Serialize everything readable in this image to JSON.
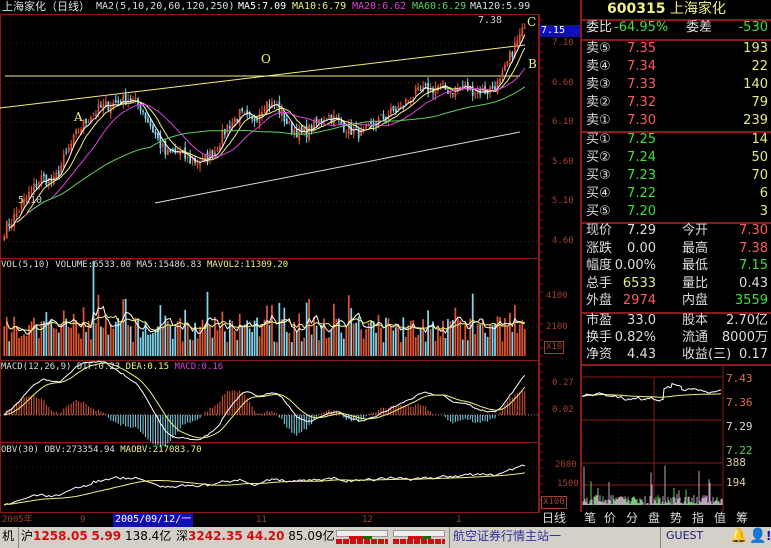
{
  "header": {
    "title": "上海家化（日线）",
    "ma_params": "MA2(5,10,20,60,120,250)",
    "ma5": "MA5:7.09",
    "ma10": "MA10:6.79",
    "ma20": "MA20:6.62",
    "ma60": "MA60:6.29",
    "ma120": "MA120:5.99"
  },
  "annotations": {
    "high": "7.38",
    "a": "A",
    "o": "O",
    "b": "B",
    "c": "C",
    "low": "5.10"
  },
  "price_axis": {
    "current": "7.15",
    "ticks": [
      "7.10",
      "6.60",
      "6.10",
      "5.60",
      "5.10",
      "4.60"
    ]
  },
  "price_series": {
    "sample_every_days": 5,
    "closes": [
      4.75,
      4.95,
      5.2,
      5.4,
      5.35,
      5.7,
      6.0,
      6.2,
      6.3,
      6.35,
      6.4,
      6.3,
      6.0,
      5.7,
      5.72,
      5.62,
      5.6,
      5.75,
      6.05,
      6.2,
      6.1,
      6.35,
      6.3,
      6.05,
      5.95,
      6.05,
      6.2,
      6.1,
      6.0,
      5.95,
      6.1,
      6.2,
      6.3,
      6.45,
      6.5,
      6.55,
      6.5,
      6.55,
      6.5,
      6.5,
      6.6,
      7.0,
      7.29
    ]
  },
  "volume": {
    "title": "VOL(5,10)",
    "volume": "VOLUME:6533.00",
    "ma5": "MA5:15486.83",
    "mavol2": "MAVOL2:11309.20",
    "ticks": [
      "4100",
      "2100"
    ],
    "unit": "X10"
  },
  "macd": {
    "title": "MACD(12,26,9)",
    "dif": "DIF:0.23",
    "dea": "DEA:0.15",
    "macd": "MACD:0.16",
    "ticks": [
      "0.27",
      "0.02"
    ]
  },
  "obv": {
    "title": "OBV(30)",
    "obv": "OBV:273354.94",
    "maobv": "MAOBV:217083.70",
    "ticks": [
      "2600",
      "1500"
    ],
    "unit": "X100"
  },
  "date_axis": {
    "labels": [
      "2005年",
      "9",
      "11",
      "12",
      "1"
    ],
    "cursor": "2005/09/12/一"
  },
  "quote": {
    "code": "600315",
    "name": "上海家化",
    "weibi_label": "委比",
    "weibi": "-64.95%",
    "weicha_label": "委差",
    "weicha": "-530",
    "sell": [
      {
        "label": "卖⑤",
        "price": "7.35",
        "vol": "193"
      },
      {
        "label": "卖④",
        "price": "7.34",
        "vol": "22"
      },
      {
        "label": "卖③",
        "price": "7.33",
        "vol": "140"
      },
      {
        "label": "卖②",
        "price": "7.32",
        "vol": "79"
      },
      {
        "label": "卖①",
        "price": "7.30",
        "vol": "239"
      }
    ],
    "buy": [
      {
        "label": "买①",
        "price": "7.25",
        "vol": "14"
      },
      {
        "label": "买②",
        "price": "7.24",
        "vol": "50"
      },
      {
        "label": "买③",
        "price": "7.23",
        "vol": "70"
      },
      {
        "label": "买④",
        "price": "7.22",
        "vol": "6"
      },
      {
        "label": "买⑤",
        "price": "7.20",
        "vol": "3"
      }
    ],
    "stats": [
      {
        "l1": "现价",
        "v1": "7.29",
        "c1": "wht",
        "l2": "今开",
        "v2": "7.30",
        "c2": "red"
      },
      {
        "l1": "涨跌",
        "v1": "0.00",
        "c1": "wht",
        "l2": "最高",
        "v2": "7.38",
        "c2": "red"
      },
      {
        "l1": "幅度",
        "v1": "0.00%",
        "c1": "wht",
        "l2": "最低",
        "v2": "7.15",
        "c2": "grn"
      },
      {
        "l1": "总手",
        "v1": "6533",
        "c1": "yel",
        "l2": "量比",
        "v2": "0.43",
        "c2": "wht"
      },
      {
        "l1": "外盘",
        "v1": "2974",
        "c1": "red",
        "l2": "内盘",
        "v2": "3559",
        "c2": "grn"
      }
    ],
    "finance": [
      {
        "l1": "市盈",
        "v1": "33.0",
        "l2": "股本",
        "v2": "2.70亿"
      },
      {
        "l1": "换手",
        "v1": "0.82%",
        "l2": "流通",
        "v2": "8000万"
      },
      {
        "l1": "净资",
        "v1": "4.43",
        "l2": "收益(三)",
        "v2": "0.17"
      }
    ]
  },
  "intraday": {
    "price_ticks": [
      "7.43",
      "7.36",
      "7.29",
      "7.22"
    ],
    "vol_ticks": [
      "388",
      "194"
    ]
  },
  "tabs": [
    "日线",
    "笔",
    "价",
    "分",
    "盘",
    "势",
    "指",
    "值",
    "筹"
  ],
  "status": {
    "left": "机",
    "sh_label": "沪",
    "sh_index": "1258.05",
    "sh_change": "5.99",
    "sh_amount": "138.4亿",
    "sz_label": "深",
    "sz_index": "3242.35",
    "sz_change": "44.20",
    "sz_amount": "85.09亿",
    "server": "航空证券行情主站一",
    "user": "GUEST"
  },
  "colors": {
    "up": "#e05530",
    "down": "#80d8f0",
    "border": "#8b1a1a",
    "ma5": "#ffffff",
    "ma10": "#f0f080",
    "ma20": "#e040e0",
    "ma60": "#60d060"
  }
}
